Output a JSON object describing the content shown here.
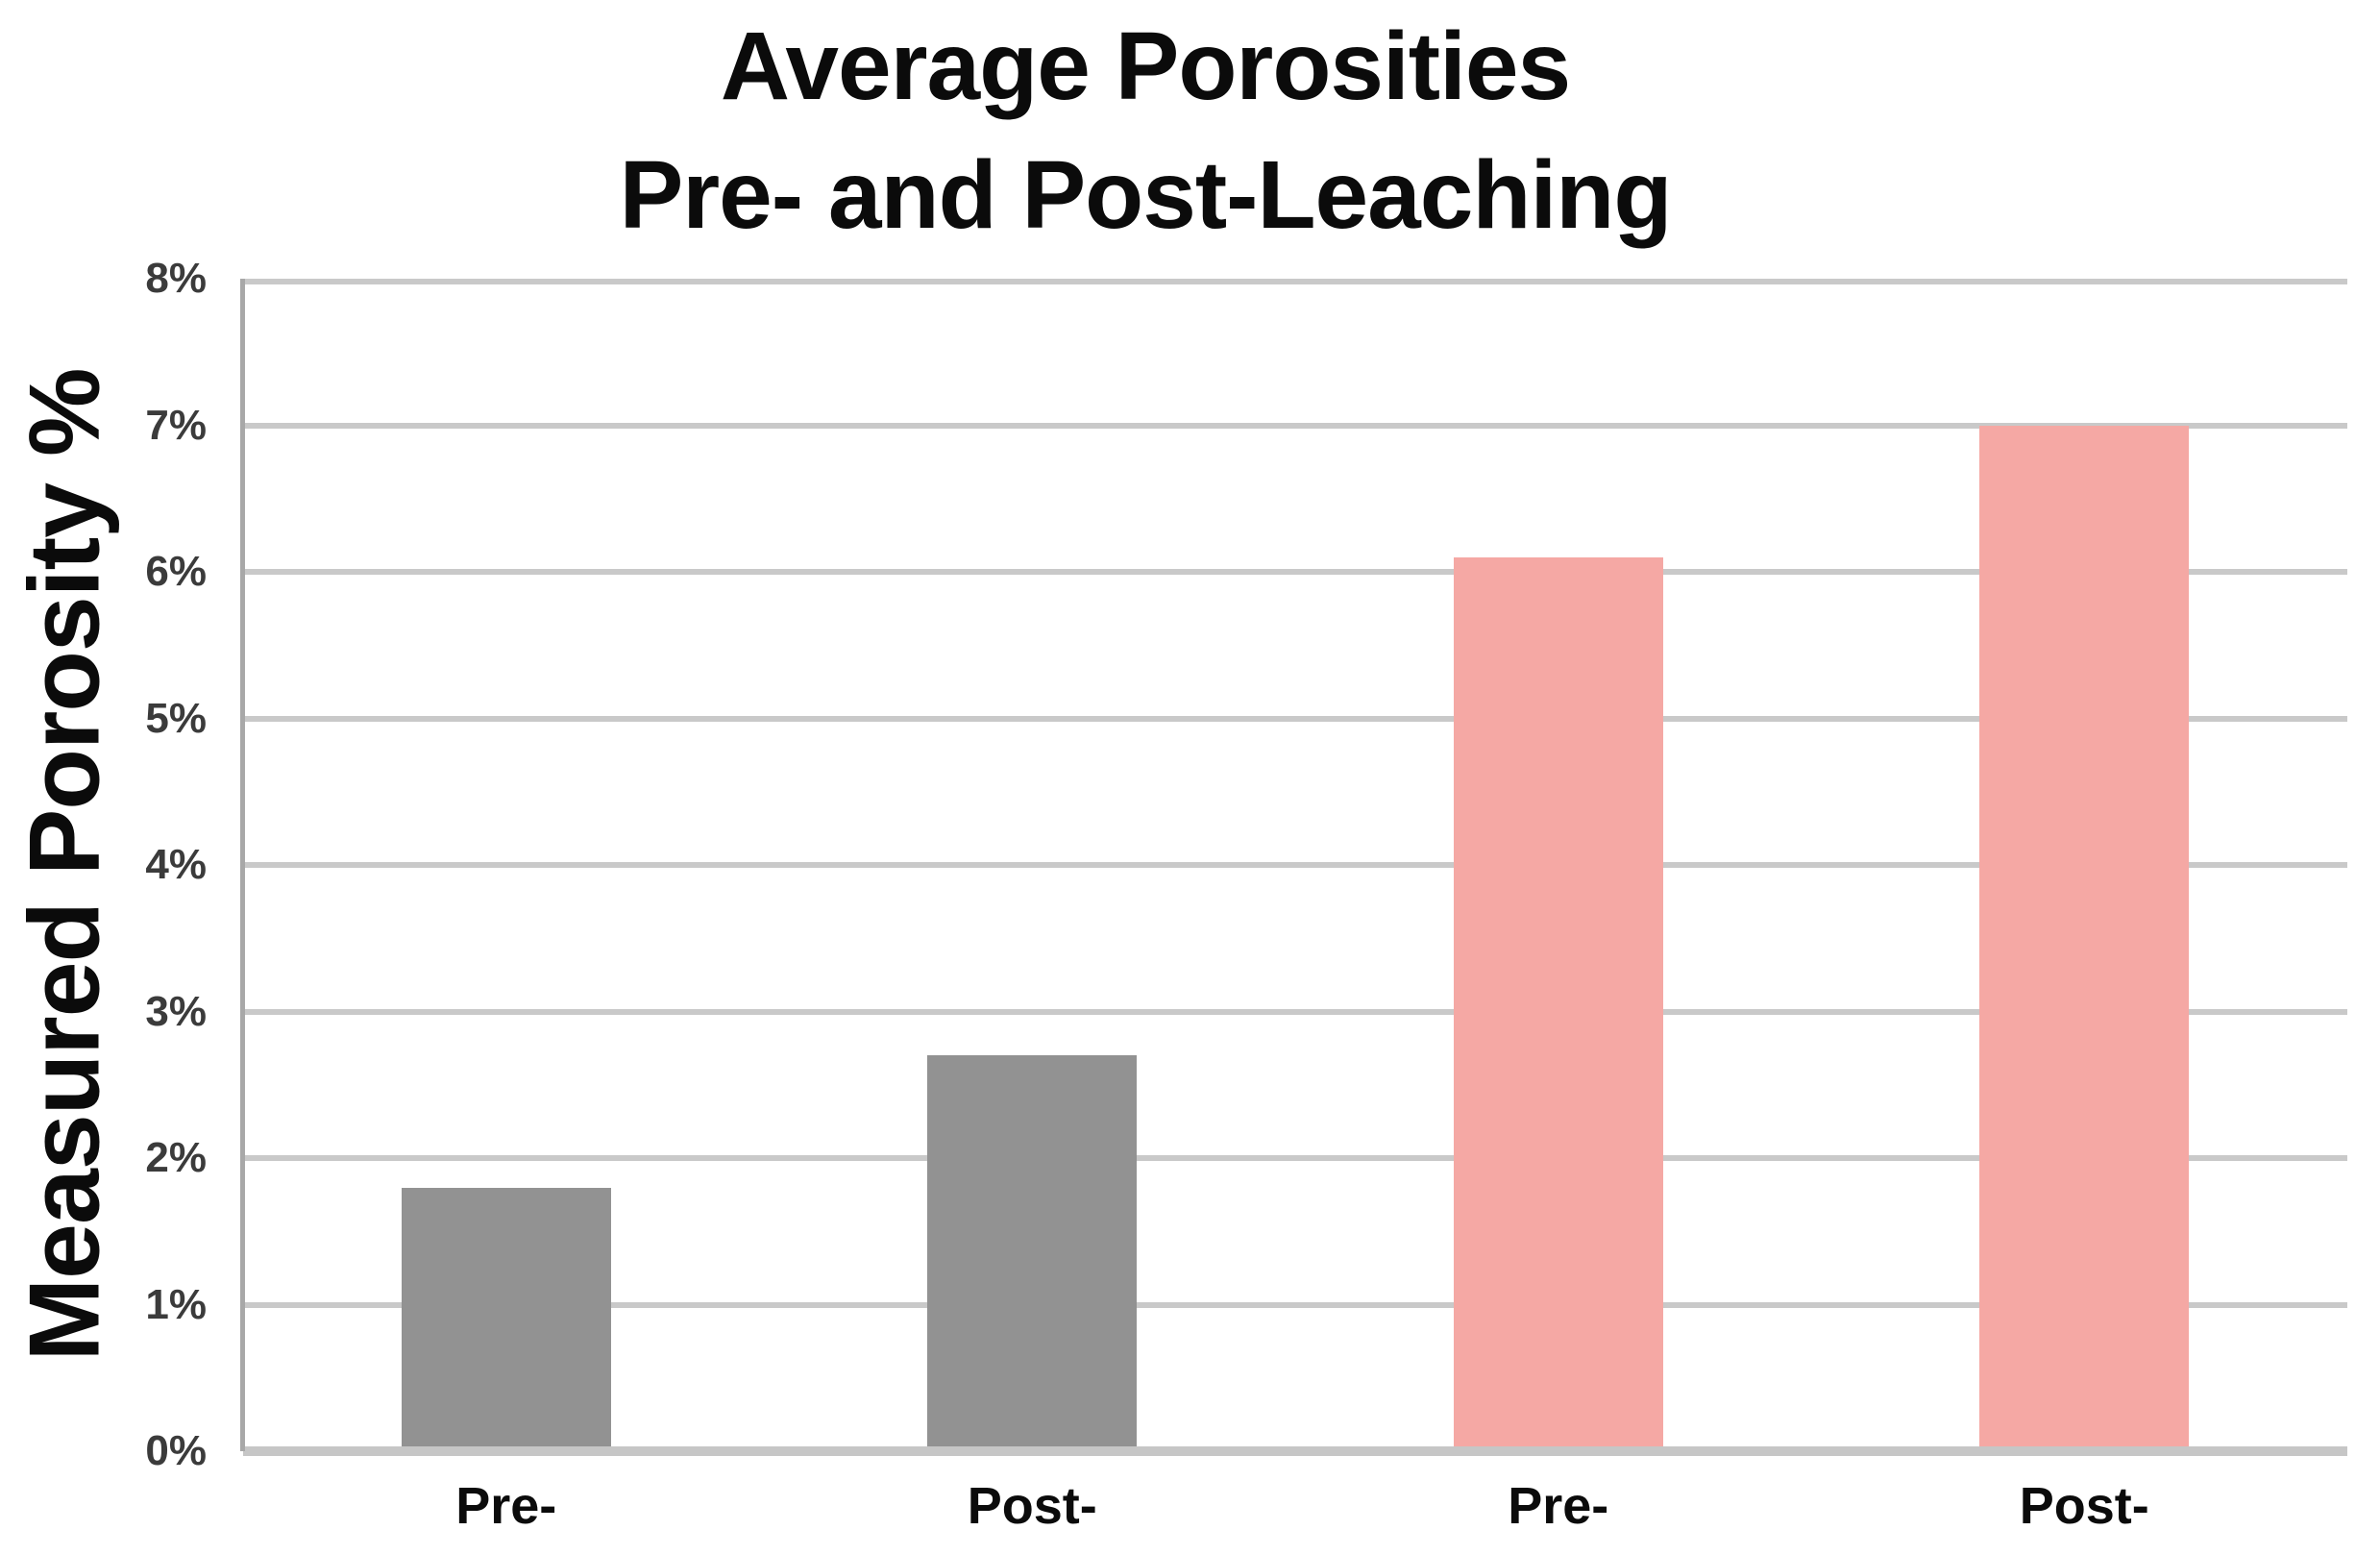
{
  "title": {
    "line1": "Average Porosities",
    "line2": "Pre- and Post-Leaching"
  },
  "chart_data": {
    "type": "bar",
    "title": "Average Porosities Pre- and Post-Leaching",
    "categories": [
      "Pre-",
      "Post-",
      "Pre-",
      "Post-"
    ],
    "values": [
      1.8,
      2.7,
      6.1,
      7.0
    ],
    "bar_colors": [
      "#929292",
      "#929292",
      "#F5A8A4",
      "#F5A8A4"
    ],
    "xlabel": "",
    "ylabel": "Measured Porosity %",
    "ylim": [
      0,
      8
    ],
    "ytick_step": 1,
    "ytick_labels": [
      "0%",
      "1%",
      "2%",
      "3%",
      "4%",
      "5%",
      "6%",
      "7%",
      "8%"
    ],
    "grid": true,
    "legend": "none"
  },
  "colors": {
    "bar_gray": "#929292",
    "bar_pink": "#F5A8A4",
    "gridline": "#C9C9C9",
    "x_axis_line": "#C6C6C6",
    "y_axis_line": "#A8A8A8",
    "title_text": "#0B0B0B",
    "tick_text": "#3B3B3B"
  }
}
